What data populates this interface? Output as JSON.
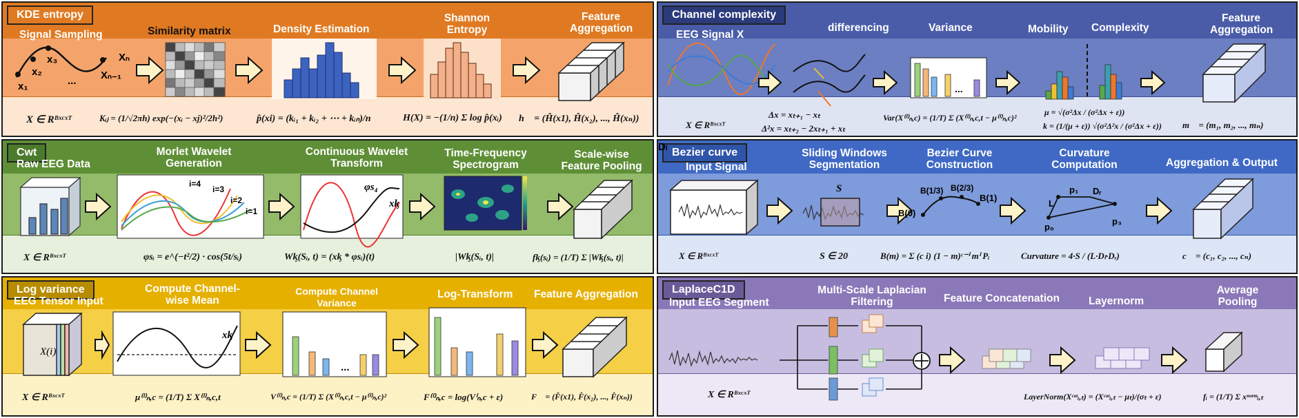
{
  "panels": {
    "kde": {
      "tag": "KDE entropy",
      "steps": [
        "Signal Sampling",
        "Similarity matrix",
        "Density Estimation",
        "Shannon Entropy",
        "Feature Aggregation"
      ],
      "labels": [
        "x₁",
        "x₂",
        "x₃",
        "...",
        "Xₙ₋₁",
        "Xₙ"
      ],
      "formulas": [
        "X ∈ Rᴮˣᶜˣᵀ",
        "Kᵢⱼ = (1/√2πh) exp(−(xᵢ − xj)²/2h²)",
        "p̂(xi) = (kᵢ₁ + kᵢ₂ + ⋯ + kᵢₙ)/n",
        "H(X) = −(1/n) Σ log p̂(xᵢ)",
        "h⃗ = (Ĥ(x1), Ĥ(x₂), ..., Ĥ(xₙ))"
      ]
    },
    "channel": {
      "tag": "Channel complexity",
      "steps": [
        "EEG Signal X",
        "differencing",
        "Variance",
        "Mobility",
        "Complexity",
        "Feature Aggregation"
      ],
      "formulas": [
        "X ∈ Rᴮˣᶜˣᵀ",
        "Δx = xₜ₊₁ − xₜ",
        "Δ²x = xₜ₊₂ − 2xₜ₊₁ + xₜ",
        "Var(X⁽ⁱ⁾ₙ,c) = (1/T) Σ (X⁽ⁱ⁾ₙ,c,t − μ⁽ⁱ⁾ₙ,c)²",
        "μ = √(σ²Δx / (σ²Δx + ε))",
        "k = (1/(μ + ε)) √(σ²Δ²x / (σ²Δx + ε))",
        "m⃗ = (m₁, m₂, ..., mₙ)"
      ]
    },
    "cwt": {
      "tag": "Cwt",
      "steps": [
        "Raw EEG Data",
        "Morlet Wavelet Generation",
        "Continuous Wavelet Transform",
        "Time-Frequency Spectrogram",
        "Scale-wise Feature Pooling"
      ],
      "labels": [
        "i=4",
        "i=3",
        "i=2",
        "i=1",
        "φs₄",
        "xᶄ"
      ],
      "formulas": [
        "X ∈ Rᴮˣᶜˣᵀ",
        "φsᵢ = e^(−t²/2) · cos(5t/sᵢ)",
        "Wᶄ(Sᵢ, t) = (xᶄ * φsᵢ)(t)",
        "|Wᶄ(Sᵢ, t)|",
        "fᶄ(sᵢ) = (1/T) Σ |Wᶄ(sᵢ, t)|"
      ]
    },
    "bezier": {
      "tag": "Bezier curve",
      "steps": [
        "Input Signal",
        "Sliding Windows Segmentation",
        "Bezier Curve Construction",
        "Curvature Computation",
        "Aggregation & Output"
      ],
      "labels": [
        "S",
        "B(0)",
        "B(1/3)",
        "B(2/3)",
        "B(1)",
        "L",
        "p₁",
        "Dᵣ",
        "p₀",
        "Dₗ",
        "p₃"
      ],
      "formulas": [
        "X ∈ Rᴮˣᶜˣᵀ",
        "S ∈ 20",
        "B(m) = Σ (c i) (1 − m)ᶜ⁻ⁱ mⁱ Pᵢ",
        "Curvature = 4·S / (L·Dₗ·Dᵣ)",
        "c⃗ = (c₁, c₂, ..., cₙ)"
      ]
    },
    "logvar": {
      "tag": "Log variance",
      "steps": [
        "EEG Tensor Input",
        "Compute Channel-wise Mean",
        "Compute Channel Variance",
        "Log-Transform",
        "Feature Aggregation"
      ],
      "labels": [
        "X(i)",
        "xᶄ",
        "..."
      ],
      "formulas": [
        "X ∈ Rᴮˣᶜˣᵀ",
        "μ⁽ⁱ⁾ₙ,c = (1/T) Σ X⁽ⁱ⁾ₙ,c,t",
        "V⁽ⁱ⁾ₙ,c = (1/T) Σ (X⁽ⁱ⁾ₙ,c,t − μ⁽ⁱ⁾ₙ,c)²",
        "F⁽ⁱ⁾ₙ,c = log(Vⁱₙ,c + ε)",
        "F⃗ = (F̂(x1), F̂(x₂), ..., F̂(xₙ))"
      ]
    },
    "laplace": {
      "tag": "LaplaceC1D",
      "steps": [
        "Input EEG Segment",
        "Multi-Scale Laplacian Filtering",
        "Feature Concatenation",
        "Layernorm",
        "Average Pooling"
      ],
      "formulas": [
        "X ∈ Rᴮˣᶜˣᵀ",
        "LayerNorm(Xᶜᵃᵗᵢ,ₜ) = (Xᶜᵃᵗᵢ,ₜ − μₜ)/(σₜ + ε)",
        "fᵢ = (1/T) Σ xⁿᵒʳᵐᵢ,ₜ"
      ]
    }
  },
  "colors": {
    "kde_band": "#e07a22",
    "kde_mid": "#f4a46a",
    "kde_form": "#fde6d2",
    "ch_band": "#4a5ca8",
    "ch_mid": "#6b7fc2",
    "ch_form": "#dfe4f3",
    "cwt_band": "#5e8f36",
    "cwt_mid": "#93bb6a",
    "cwt_form": "#e6f0dc",
    "bz_band": "#3f69c4",
    "bz_mid": "#7e9bdb",
    "bz_form": "#dde6f6",
    "lv_band": "#e6b000",
    "lv_mid": "#f5cf45",
    "lv_form": "#fdf1c6",
    "lp_band": "#8a78b8",
    "lp_mid": "#c6bde0",
    "lp_form": "#ece8f5"
  }
}
